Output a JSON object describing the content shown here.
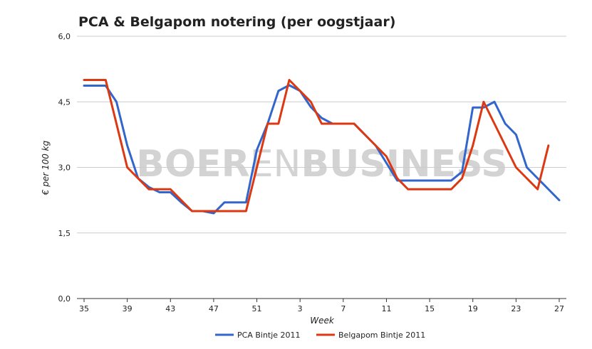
{
  "chart_data": {
    "type": "line",
    "title": "PCA & Belgapom notering (per oogstjaar)",
    "xlabel": "Week",
    "ylabel": "€ per 100 kg",
    "ylim": [
      0,
      6
    ],
    "y_ticks": [
      "0,0",
      "1,5",
      "3,0",
      "4,5",
      "6,0"
    ],
    "y_tick_values": [
      0,
      1.5,
      3,
      4.5,
      6
    ],
    "x_ticks": [
      "35",
      "39",
      "43",
      "47",
      "51",
      "3",
      "7",
      "11",
      "15",
      "19",
      "23",
      "27"
    ],
    "x": [
      "35",
      "36",
      "37",
      "38",
      "39",
      "40",
      "41",
      "42",
      "43",
      "44",
      "45",
      "46",
      "47",
      "48",
      "49",
      "50",
      "51",
      "52",
      "1",
      "2",
      "3",
      "4",
      "5",
      "6",
      "7",
      "8",
      "9",
      "10",
      "11",
      "12",
      "13",
      "14",
      "15",
      "16",
      "17",
      "18",
      "19",
      "20",
      "21",
      "22",
      "23",
      "24",
      "25",
      "26",
      "27"
    ],
    "grid": true,
    "legend_position": "bottom",
    "watermark": {
      "bold1": "BOER",
      "light": "EN",
      "bold2": "BUSINESS"
    },
    "series": [
      {
        "name": "PCA Bintje 2011",
        "color": "#3366cc",
        "values": [
          4.87,
          4.87,
          4.87,
          4.5,
          3.5,
          2.75,
          2.55,
          2.43,
          2.43,
          2.2,
          2.0,
          2.0,
          1.95,
          2.2,
          2.2,
          2.2,
          3.4,
          4.0,
          4.75,
          4.88,
          4.75,
          4.38,
          4.13,
          4.0,
          4.0,
          4.0,
          3.75,
          3.5,
          3.1,
          2.7,
          2.7,
          2.7,
          2.7,
          2.7,
          2.7,
          2.9,
          4.37,
          4.37,
          4.5,
          4.0,
          3.75,
          3.0,
          2.75,
          2.5,
          2.25
        ]
      },
      {
        "name": "Belgapom Bintje 2011",
        "color": "#dc3912",
        "values": [
          5.0,
          5.0,
          5.0,
          4.0,
          3.0,
          2.75,
          2.5,
          2.5,
          2.5,
          2.25,
          2.0,
          2.0,
          2.0,
          2.0,
          2.0,
          2.0,
          3.0,
          4.0,
          4.0,
          5.0,
          4.75,
          4.5,
          4.0,
          4.0,
          4.0,
          4.0,
          3.75,
          3.5,
          3.25,
          2.75,
          2.5,
          2.5,
          2.5,
          2.5,
          2.5,
          2.75,
          3.5,
          4.5,
          4.0,
          3.5,
          3.0,
          2.75,
          2.5,
          3.5,
          null
        ]
      }
    ]
  }
}
